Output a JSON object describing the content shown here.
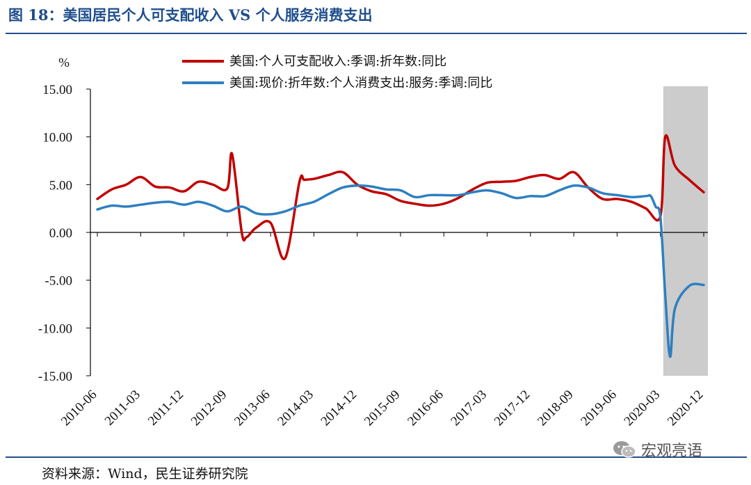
{
  "header": {
    "title": "图 18：美国居民个人可支配收入 VS 个人服务消费支出"
  },
  "footer": {
    "source": "资料来源：Wind，民生证券研究院",
    "watermark": "宏观亮语"
  },
  "colors": {
    "income": "#c00000",
    "services": "#2e7fc0",
    "shade": "#cccccc",
    "brand": "#1f4e8c"
  },
  "chart_data": {
    "type": "line",
    "title": "美国居民个人可支配收入 VS 个人服务消费支出",
    "ylabel": "%",
    "ylim": [
      -15,
      15
    ],
    "yticks": [
      15,
      10,
      5,
      0,
      -5,
      -10,
      -15
    ],
    "ytick_labels": [
      "15.00",
      "10.00",
      "5.00",
      "0.00",
      "-5.00",
      "-10.00",
      "-15.00"
    ],
    "x_start": "2010-06",
    "x_end": "2020-12",
    "xtick_labels": [
      "2010-06",
      "2011-03",
      "2011-12",
      "2012-09",
      "2013-06",
      "2014-03",
      "2014-12",
      "2015-09",
      "2016-06",
      "2017-03",
      "2017-12",
      "2018-09",
      "2019-06",
      "2020-03",
      "2020-12"
    ],
    "shaded_region": [
      "2020-01",
      "2020-12"
    ],
    "series": [
      {
        "name": "美国:个人可支配收入:季调:折年数:同比",
        "x": [
          "2010-06",
          "2010-09",
          "2010-12",
          "2011-03",
          "2011-06",
          "2011-09",
          "2011-12",
          "2012-03",
          "2012-06",
          "2012-09",
          "2012-10",
          "2012-12",
          "2013-01",
          "2013-03",
          "2013-06",
          "2013-09",
          "2013-12",
          "2014-01",
          "2014-03",
          "2014-06",
          "2014-09",
          "2014-12",
          "2015-03",
          "2015-06",
          "2015-09",
          "2015-12",
          "2016-03",
          "2016-06",
          "2016-09",
          "2016-12",
          "2017-03",
          "2017-06",
          "2017-09",
          "2017-12",
          "2018-03",
          "2018-06",
          "2018-09",
          "2018-12",
          "2019-03",
          "2019-06",
          "2019-09",
          "2019-12",
          "2020-03",
          "2020-04",
          "2020-06",
          "2020-09",
          "2020-12"
        ],
        "values": [
          3.5,
          4.5,
          5.0,
          5.8,
          4.8,
          4.7,
          4.3,
          5.3,
          5.0,
          4.6,
          8.2,
          0.0,
          -0.5,
          0.5,
          1.0,
          -2.7,
          5.3,
          5.5,
          5.6,
          6.0,
          6.3,
          5.0,
          4.3,
          4.0,
          3.3,
          3.0,
          2.8,
          3.0,
          3.6,
          4.5,
          5.2,
          5.3,
          5.4,
          5.8,
          6.0,
          5.6,
          6.3,
          4.7,
          3.5,
          3.5,
          3.2,
          2.5,
          1.7,
          10.0,
          7.0,
          5.5,
          4.2
        ]
      },
      {
        "name": "美国:现价:折年数:个人消费支出:服务:季调:同比",
        "x": [
          "2010-06",
          "2010-09",
          "2010-12",
          "2011-03",
          "2011-06",
          "2011-09",
          "2011-12",
          "2012-03",
          "2012-06",
          "2012-09",
          "2012-12",
          "2013-03",
          "2013-06",
          "2013-09",
          "2013-12",
          "2014-03",
          "2014-06",
          "2014-09",
          "2014-12",
          "2015-03",
          "2015-06",
          "2015-09",
          "2015-12",
          "2016-03",
          "2016-06",
          "2016-09",
          "2016-12",
          "2017-03",
          "2017-06",
          "2017-09",
          "2017-12",
          "2018-03",
          "2018-06",
          "2018-09",
          "2018-12",
          "2019-03",
          "2019-06",
          "2019-09",
          "2019-12",
          "2020-01",
          "2020-02",
          "2020-03",
          "2020-04",
          "2020-05",
          "2020-06",
          "2020-09",
          "2020-12"
        ],
        "values": [
          2.4,
          2.8,
          2.7,
          2.9,
          3.1,
          3.2,
          2.9,
          3.2,
          2.8,
          2.2,
          2.7,
          2.0,
          1.9,
          2.2,
          2.8,
          3.2,
          4.0,
          4.7,
          4.9,
          4.8,
          4.5,
          4.4,
          3.7,
          3.9,
          3.9,
          3.9,
          4.2,
          4.4,
          4.1,
          3.6,
          3.8,
          3.8,
          4.4,
          4.9,
          4.7,
          4.1,
          3.9,
          3.7,
          3.8,
          3.8,
          2.7,
          1.6,
          -6.5,
          -13.0,
          -8.0,
          -5.6,
          -5.5
        ]
      }
    ]
  }
}
